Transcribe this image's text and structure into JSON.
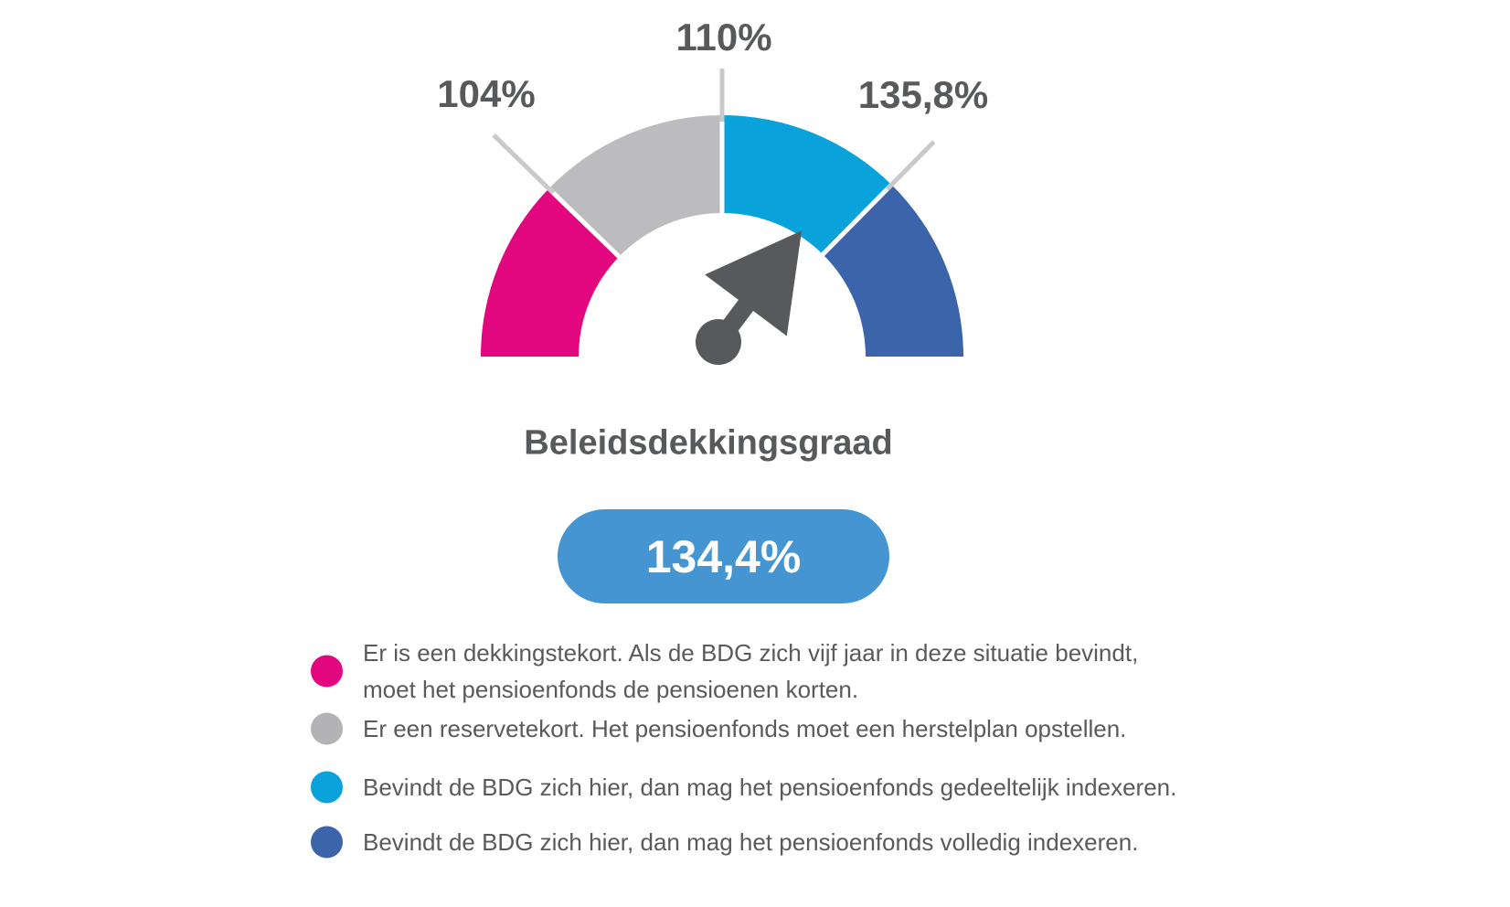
{
  "colors": {
    "segment_pink": "#E2077E",
    "segment_gray": "#BCBCBE",
    "segment_cyan": "#0AA2DB",
    "segment_blue": "#3C64AA",
    "needle": "#58595B",
    "tick": "#C8C9CB",
    "label_text": "#58595B",
    "pill_background": "#4495D2",
    "pill_text": "#FFFFFF"
  },
  "chart_data": {
    "type": "gauge",
    "title": "Beleidsdekkingsgraad",
    "value": 134.4,
    "value_label": "134,4%",
    "unit": "%",
    "gauge_span_degrees": 180,
    "needle_angle_deg": 53.2,
    "thresholds": [
      {
        "label": "104%",
        "value": 104
      },
      {
        "label": "110%",
        "value": 110
      },
      {
        "label": "135,8%",
        "value": 135.8
      }
    ],
    "segments": [
      {
        "name": "dekkingstekort",
        "color": "#E2077E",
        "range": [
          null,
          104
        ]
      },
      {
        "name": "reservetekort",
        "color": "#BCBCBE",
        "range": [
          104,
          110
        ]
      },
      {
        "name": "gedeeltelijk-indexeren",
        "color": "#0AA2DB",
        "range": [
          110,
          135.8
        ]
      },
      {
        "name": "volledig-indexeren",
        "color": "#3C64AA",
        "range": [
          135.8,
          null
        ]
      }
    ],
    "legend_position": "bottom"
  },
  "legend": {
    "items": [
      {
        "color": "#E2077E",
        "line1": "Er is een dekkingstekort. Als de BDG zich vijf jaar in deze situatie bevindt,",
        "line2": "moet het pensioenfonds de pensioenen korten."
      },
      {
        "color": "#B3B3B5",
        "text": "Er een reservetekort. Het pensioenfonds moet een herstelplan opstellen."
      },
      {
        "color": "#0AA2DB",
        "text": "Bevindt de BDG zich hier, dan mag het pensioenfonds gedeeltelijk indexeren."
      },
      {
        "color": "#3C64AA",
        "text": "Bevindt de BDG zich hier, dan mag het pensioenfonds volledig indexeren."
      }
    ]
  }
}
